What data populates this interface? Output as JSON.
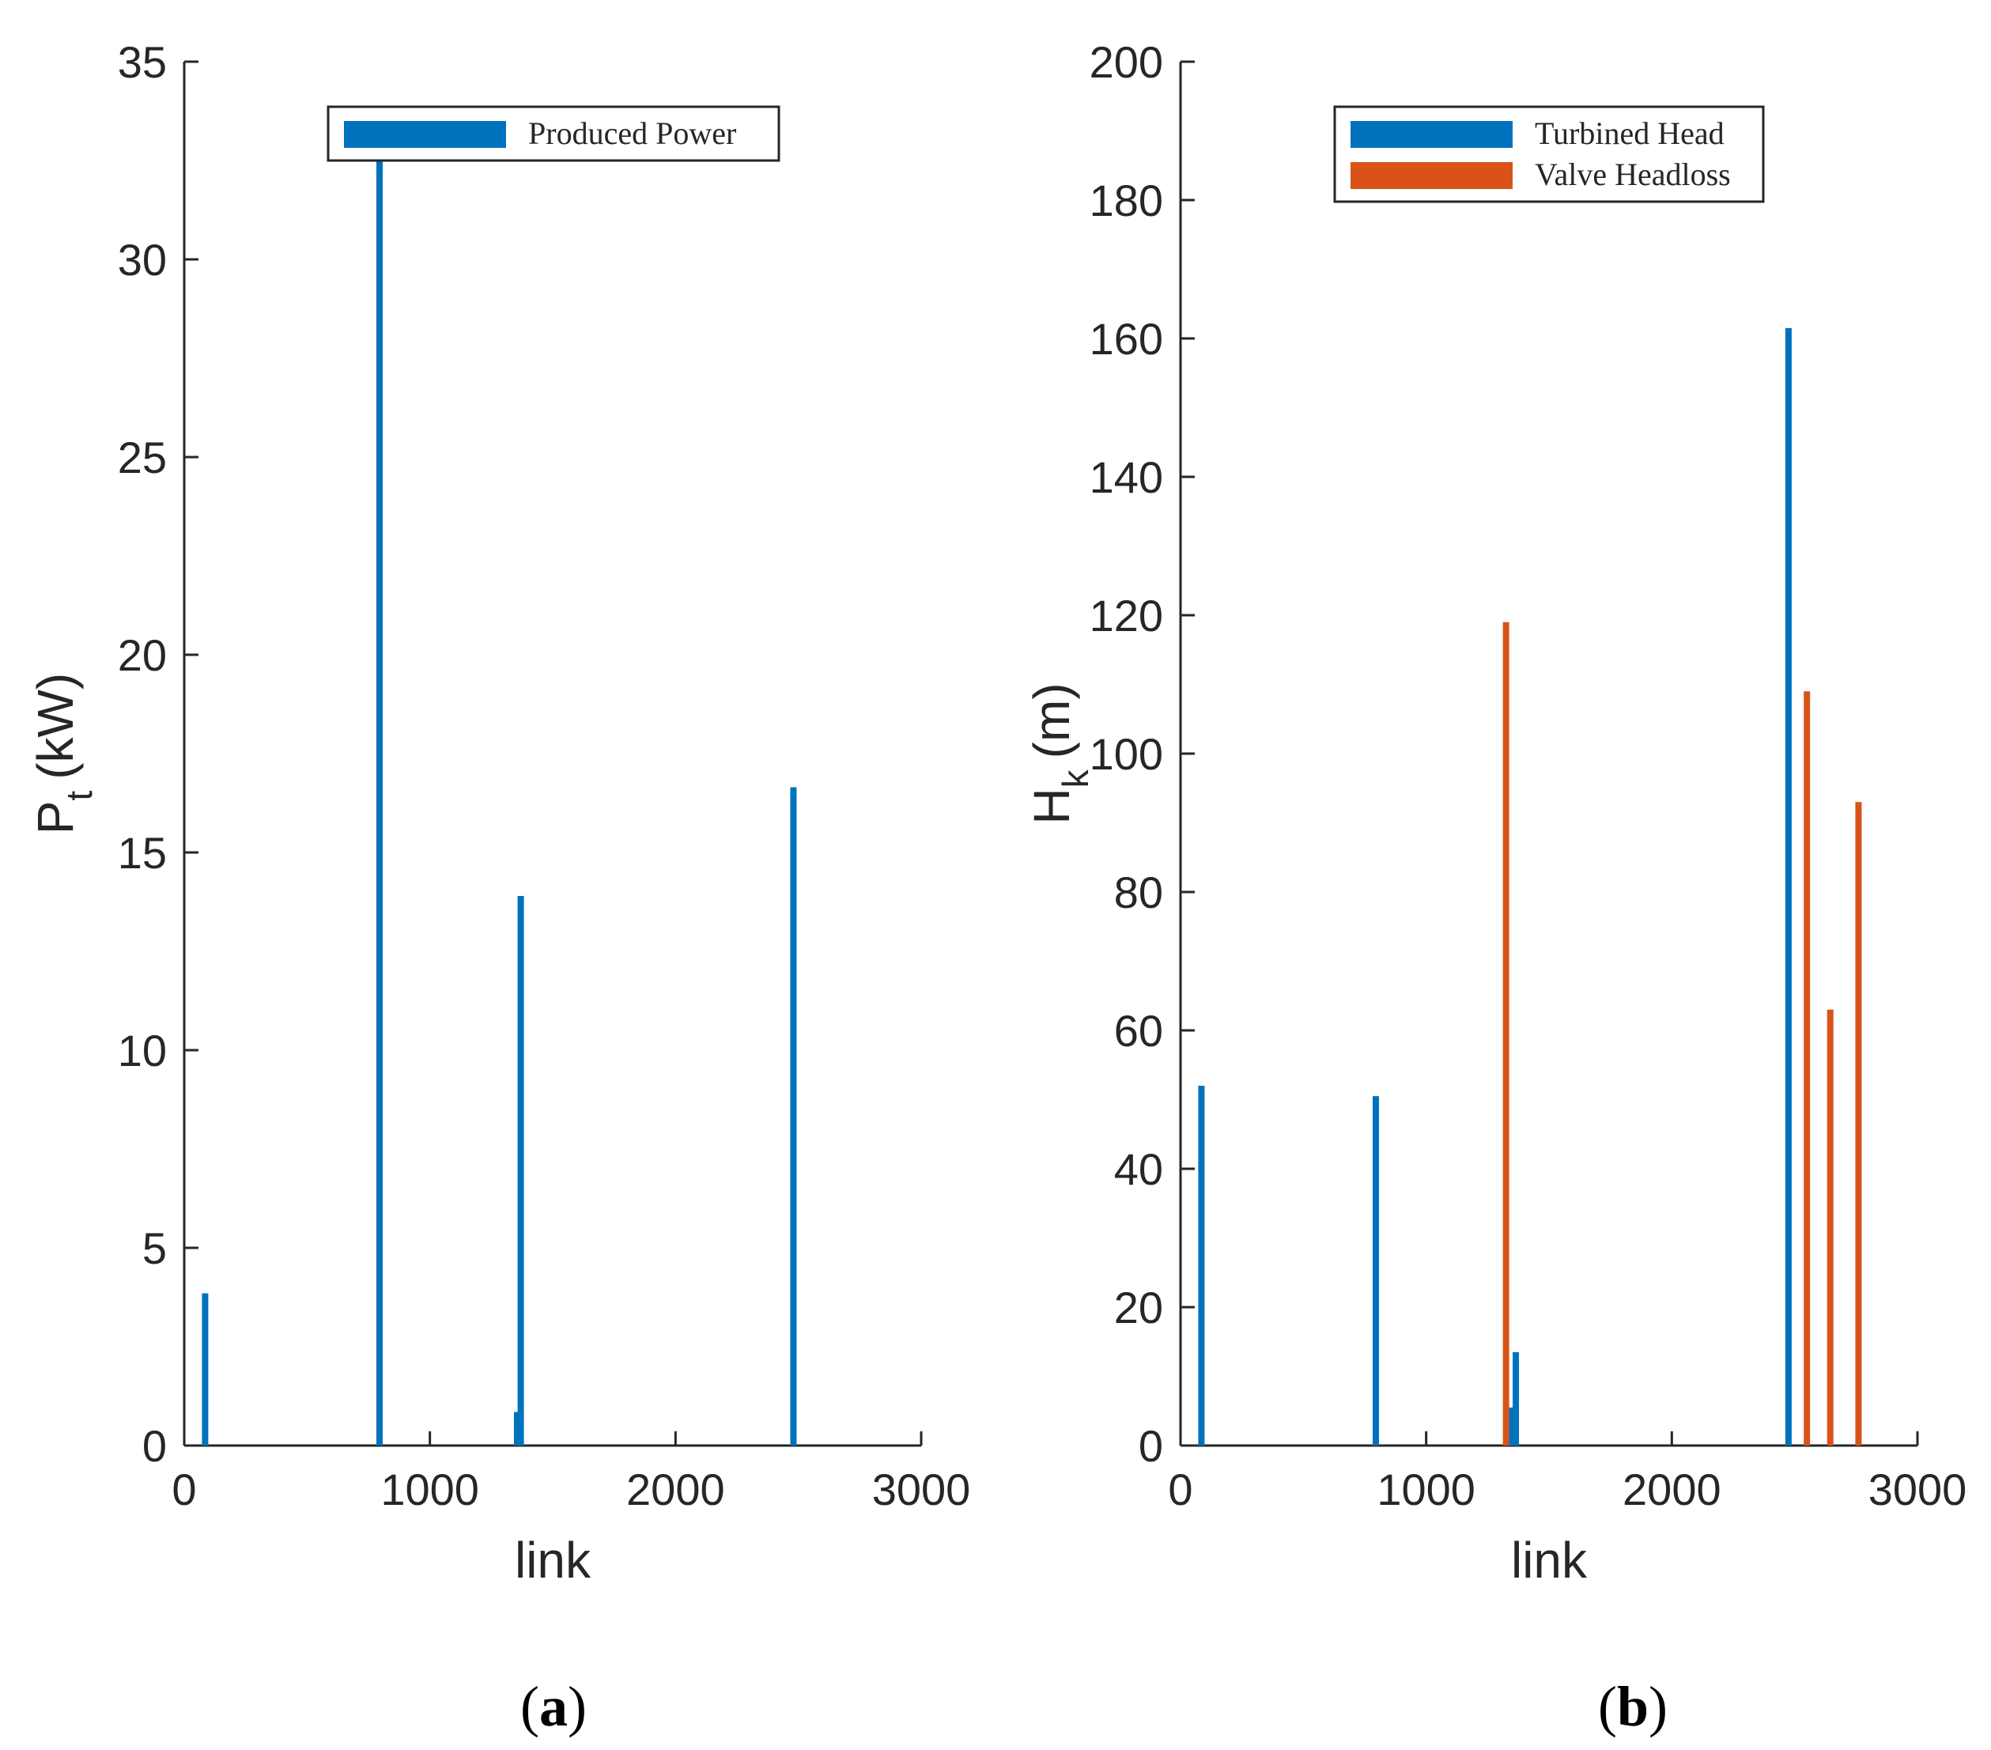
{
  "chart_data": [
    {
      "id": "a",
      "type": "bar",
      "panel_label": "a",
      "xlabel": "link",
      "ylabel_main": "P",
      "ylabel_sub": "t",
      "ylabel_unit": "(kW)",
      "xlim": [
        0,
        3000
      ],
      "ylim": [
        0,
        35
      ],
      "xticks": [
        0,
        1000,
        2000,
        3000
      ],
      "xtick_labels": [
        "0",
        "1000",
        "2000",
        "3000"
      ],
      "yticks": [
        0,
        5,
        10,
        15,
        20,
        25,
        30,
        35
      ],
      "ytick_labels": [
        "0",
        "5",
        "10",
        "15",
        "20",
        "25",
        "30",
        "35"
      ],
      "grid": false,
      "legend_position": "top-center",
      "series": [
        {
          "name": "Produced Power",
          "color": "#0072BD",
          "points": [
            {
              "x": 85,
              "y": 3.85
            },
            {
              "x": 795,
              "y": 32.5
            },
            {
              "x": 1355,
              "y": 0.85
            },
            {
              "x": 1370,
              "y": 13.9
            },
            {
              "x": 2480,
              "y": 16.65
            }
          ]
        }
      ]
    },
    {
      "id": "b",
      "type": "bar",
      "panel_label": "b",
      "xlabel": "link",
      "ylabel_main": "H",
      "ylabel_sub": "k",
      "ylabel_unit": "(m)",
      "xlim": [
        0,
        3000
      ],
      "ylim": [
        0,
        200
      ],
      "xticks": [
        0,
        1000,
        2000,
        3000
      ],
      "xtick_labels": [
        "0",
        "1000",
        "2000",
        "3000"
      ],
      "yticks": [
        0,
        20,
        40,
        60,
        80,
        100,
        120,
        140,
        160,
        180,
        200
      ],
      "ytick_labels": [
        "0",
        "20",
        "40",
        "60",
        "80",
        "100",
        "120",
        "140",
        "160",
        "180",
        "200"
      ],
      "grid": false,
      "legend_position": "top-center",
      "series": [
        {
          "name": "Turbined Head",
          "color": "#0072BD",
          "points": [
            {
              "x": 85,
              "y": 52
            },
            {
              "x": 795,
              "y": 50.5
            },
            {
              "x": 1350,
              "y": 5.5
            },
            {
              "x": 1365,
              "y": 13.5
            },
            {
              "x": 2475,
              "y": 161.5
            }
          ]
        },
        {
          "name": "Valve Headloss",
          "color": "#D95319",
          "points": [
            {
              "x": 1325,
              "y": 119
            },
            {
              "x": 2550,
              "y": 109
            },
            {
              "x": 2645,
              "y": 63
            },
            {
              "x": 2760,
              "y": 93
            }
          ]
        }
      ]
    }
  ]
}
